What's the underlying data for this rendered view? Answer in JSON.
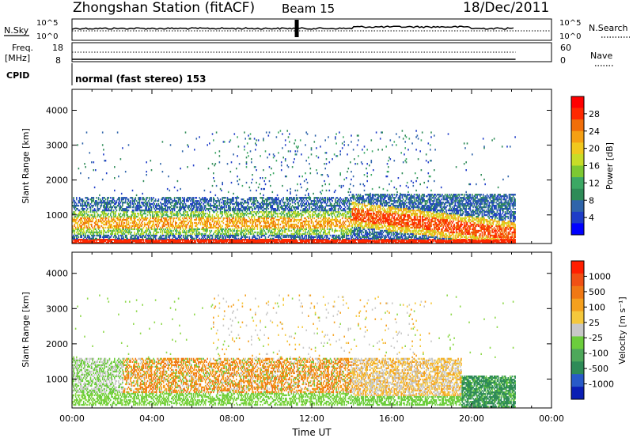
{
  "header": {
    "title": "Zhongshan Station (fitACF)",
    "beam": "Beam 15",
    "date": "18/Dec/2011"
  },
  "top_panels": {
    "nsky_label": "N.Sky",
    "nsky_ticks": [
      "10^5",
      "10^0"
    ],
    "nsearch_label": "N.Search",
    "nsearch_ticks": [
      "10^5",
      "10^0"
    ],
    "freq_label_1": "Freq.",
    "freq_label_2": "[MHz]",
    "freq_ticks": [
      "18",
      "8"
    ],
    "nave_label": "Nave",
    "nave_ticks": [
      "60",
      "0"
    ],
    "cpid_label": "CPID",
    "cpid_text": "normal (fast stereo) 153"
  },
  "chart_data": [
    {
      "type": "heatmap",
      "name": "power",
      "ylabel": "Slant Range [km]",
      "xlabel": "",
      "xlim": [
        0,
        24
      ],
      "ylim": [
        180,
        4600
      ],
      "y_ticks": [
        "4000",
        "3000",
        "2000",
        "1000"
      ],
      "colorbar": {
        "label": "Power [dB]",
        "ticks": [
          "28",
          "24",
          "20",
          "16",
          "12",
          "8",
          "4"
        ],
        "colors": [
          "#0000ff",
          "#1e3cc8",
          "#2f64aa",
          "#2e8b57",
          "#3ca864",
          "#7dc832",
          "#c8dc28",
          "#f0c81e",
          "#f5a014",
          "#f06e0a",
          "#ff2800",
          "#ff0000"
        ]
      }
    },
    {
      "type": "heatmap",
      "name": "velocity",
      "ylabel": "Slant Range [km]",
      "xlabel": "Time UT",
      "xlim": [
        0,
        24
      ],
      "ylim": [
        180,
        4600
      ],
      "y_ticks": [
        "4000",
        "3000",
        "2000",
        "1000"
      ],
      "x_ticks": [
        "00:00",
        "04:00",
        "08:00",
        "12:00",
        "16:00",
        "20:00",
        "00:00"
      ],
      "colorbar": {
        "label": "Velocity [m s⁻¹]",
        "ticks": [
          "1000",
          "500",
          "100",
          "25",
          "-25",
          "-100",
          "-500",
          "-1000"
        ],
        "colors": [
          "#0a1eb4",
          "#285ac8",
          "#2e8b57",
          "#4ea85a",
          "#6ccd3c",
          "#c8c8c8",
          "#f5c83c",
          "#f5a01e",
          "#f07814",
          "#f05014",
          "#ff1e00"
        ]
      }
    }
  ]
}
